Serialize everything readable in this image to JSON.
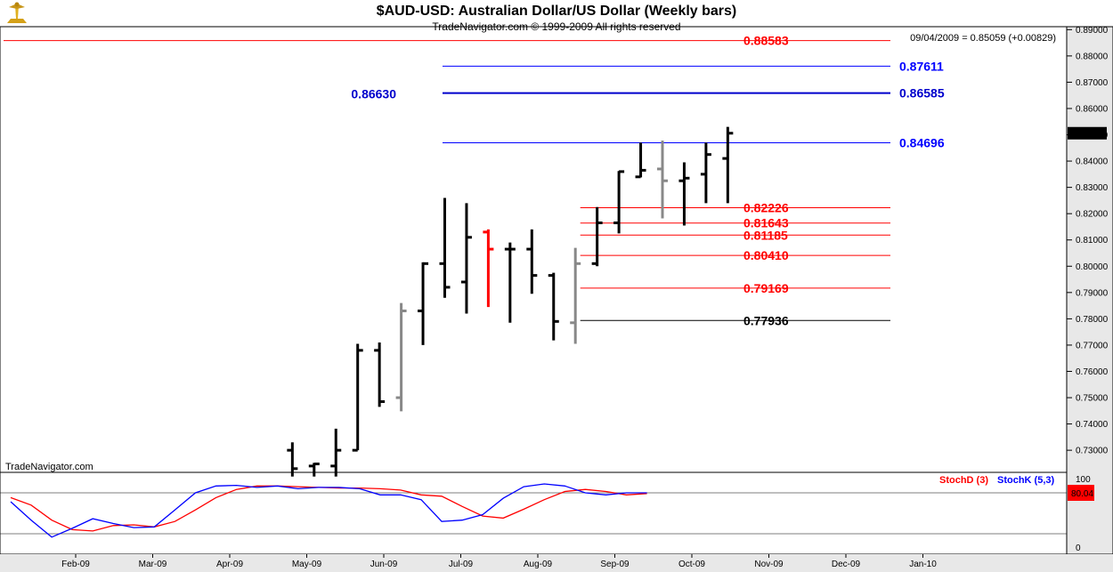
{
  "header": {
    "title": "$AUD-USD:  Australian Dollar/US Dollar  (Weekly bars)",
    "subtitle": "TradeNavigator.com © 1999-2009 All rights reserved",
    "quote": "09/04/2009 = 0.85059 (+0.00829)",
    "watermark": "TradeNavigator.com",
    "logo_icon": "trade-navigator-logo-icon"
  },
  "colors": {
    "red": "#ff0000",
    "blue": "#0000ff",
    "navy": "#0000cc",
    "black": "#000000",
    "gray": "#888888",
    "grid": "#c0c0c0",
    "axis_bg": "#e8e8e8"
  },
  "chart_data": [
    {
      "type": "ohlc",
      "title": "$AUD-USD:  Australian Dollar/US Dollar  (Weekly bars)",
      "ylim": [
        0.7226,
        0.8918
      ],
      "y_ticks": [
        0.73,
        0.74,
        0.75,
        0.76,
        0.77,
        0.78,
        0.79,
        0.8,
        0.81,
        0.82,
        0.83,
        0.84,
        0.85,
        0.86,
        0.87,
        0.88,
        0.89
      ],
      "y_tick_labels": [
        "0.73000",
        "0.74000",
        "0.75000",
        "0.76000",
        "0.77000",
        "0.78000",
        "0.79000",
        "0.80000",
        "0.81000",
        "0.82000",
        "0.83000",
        "0.84000",
        "0.85000",
        "0.86000",
        "0.87000",
        "0.88000",
        "0.89000"
      ],
      "last_price_label": "0.85059",
      "x_labels": [
        "Feb-09",
        "Mar-09",
        "Apr-09",
        "May-09",
        "Jun-09",
        "Jul-09",
        "Aug-09",
        "Sep-09",
        "Oct-09",
        "Nov-09",
        "Dec-09",
        "Jan-10"
      ],
      "bars": [
        {
          "week": 13,
          "open": 0.73,
          "high": 0.733,
          "low": 0.72,
          "close": 0.723,
          "color": "black"
        },
        {
          "week": 14,
          "open": 0.724,
          "high": 0.7252,
          "low": 0.72,
          "close": 0.7248,
          "color": "black"
        },
        {
          "week": 15,
          "open": 0.724,
          "high": 0.7382,
          "low": 0.72,
          "close": 0.73,
          "color": "black"
        },
        {
          "week": 16,
          "open": 0.73,
          "high": 0.7705,
          "low": 0.73,
          "close": 0.768,
          "color": "black"
        },
        {
          "week": 17,
          "open": 0.768,
          "high": 0.771,
          "low": 0.7465,
          "close": 0.7485,
          "color": "black"
        },
        {
          "week": 18,
          "open": 0.75,
          "high": 0.786,
          "low": 0.7448,
          "close": 0.783,
          "color": "gray"
        },
        {
          "week": 19,
          "open": 0.783,
          "high": 0.8015,
          "low": 0.77,
          "close": 0.801,
          "color": "black"
        },
        {
          "week": 20,
          "open": 0.801,
          "high": 0.826,
          "low": 0.788,
          "close": 0.792,
          "color": "black"
        },
        {
          "week": 21,
          "open": 0.794,
          "high": 0.824,
          "low": 0.782,
          "close": 0.811,
          "color": "black"
        },
        {
          "week": 22,
          "open": 0.813,
          "high": 0.814,
          "low": 0.7845,
          "close": 0.8065,
          "color": "red"
        },
        {
          "week": 23,
          "open": 0.8065,
          "high": 0.809,
          "low": 0.7785,
          "close": 0.8065,
          "color": "black"
        },
        {
          "week": 24,
          "open": 0.8065,
          "high": 0.814,
          "low": 0.7895,
          "close": 0.7965,
          "color": "black"
        },
        {
          "week": 25,
          "open": 0.7965,
          "high": 0.7975,
          "low": 0.7718,
          "close": 0.779,
          "color": "black"
        },
        {
          "week": 26,
          "open": 0.7785,
          "high": 0.807,
          "low": 0.7705,
          "close": 0.801,
          "color": "gray"
        },
        {
          "week": 27,
          "open": 0.801,
          "high": 0.8225,
          "low": 0.8,
          "close": 0.8165,
          "color": "black"
        },
        {
          "week": 28,
          "open": 0.8165,
          "high": 0.8362,
          "low": 0.8125,
          "close": 0.836,
          "color": "black"
        },
        {
          "week": 29,
          "open": 0.834,
          "high": 0.847,
          "low": 0.8338,
          "close": 0.8365,
          "color": "black"
        },
        {
          "week": 30,
          "open": 0.837,
          "high": 0.8478,
          "low": 0.8182,
          "close": 0.8325,
          "color": "gray"
        },
        {
          "week": 31,
          "open": 0.8325,
          "high": 0.8395,
          "low": 0.8155,
          "close": 0.8335,
          "color": "black"
        },
        {
          "week": 32,
          "open": 0.835,
          "high": 0.847,
          "low": 0.824,
          "close": 0.8425,
          "color": "black"
        },
        {
          "week": 33,
          "open": 0.841,
          "high": 0.853,
          "low": 0.824,
          "close": 0.8506,
          "color": "black"
        }
      ],
      "levels": [
        {
          "value": 0.88583,
          "label": "0.88583",
          "color": "red",
          "side": "right",
          "from_week": 0,
          "thick": false
        },
        {
          "value": 0.87611,
          "label": "0.87611",
          "color": "blue",
          "side": "right",
          "from_week": 20,
          "thick": false
        },
        {
          "value": 0.86585,
          "label": "0.86585",
          "color": "navy",
          "side": "right",
          "from_week": 20,
          "thick": true
        },
        {
          "value": 0.8663,
          "label": "0.86630",
          "color": "navy",
          "side": "left",
          "from_week": 20,
          "thick": false,
          "label_only": true
        },
        {
          "value": 0.84696,
          "label": "0.84696",
          "color": "blue",
          "side": "right",
          "from_week": 20,
          "thick": false
        },
        {
          "value": 0.82226,
          "label": "0.82226",
          "color": "red",
          "side": "right",
          "from_week": 26,
          "thick": false
        },
        {
          "value": 0.81643,
          "label": "0.81643",
          "color": "red",
          "side": "right",
          "from_week": 26,
          "thick": false
        },
        {
          "value": 0.81185,
          "label": "0.81185",
          "color": "red",
          "side": "right",
          "from_week": 26,
          "thick": false
        },
        {
          "value": 0.8041,
          "label": "0.80410",
          "color": "red",
          "side": "right",
          "from_week": 26,
          "thick": false
        },
        {
          "value": 0.79169,
          "label": "0.79169",
          "color": "red",
          "side": "right",
          "from_week": 26,
          "thick": false
        },
        {
          "value": 0.77936,
          "label": "0.77936",
          "color": "black",
          "side": "right",
          "from_week": 26,
          "thick": false
        }
      ]
    },
    {
      "type": "line",
      "ylim": [
        -10,
        110
      ],
      "y_tick_labels": [
        "100",
        "80.04",
        "0"
      ],
      "y_ticks": [
        100,
        80,
        0
      ],
      "ref_lines": [
        80,
        20
      ],
      "last_value_label": "80.04",
      "series": [
        {
          "name": "StochD (3)",
          "color": "red",
          "points": [
            [
              0,
              73
            ],
            [
              1,
              62
            ],
            [
              2,
              40
            ],
            [
              3,
              26
            ],
            [
              4,
              24
            ],
            [
              5,
              32
            ],
            [
              6,
              33
            ],
            [
              7,
              30
            ],
            [
              8,
              38
            ],
            [
              9,
              55
            ],
            [
              10,
              73
            ],
            [
              11,
              85
            ],
            [
              12,
              90
            ],
            [
              13,
              90
            ],
            [
              14,
              89
            ],
            [
              15,
              88
            ],
            [
              16,
              87
            ],
            [
              17,
              87
            ],
            [
              18,
              86
            ],
            [
              19,
              84
            ],
            [
              20,
              77
            ],
            [
              21,
              75
            ],
            [
              22,
              60
            ],
            [
              23,
              46
            ],
            [
              24,
              43
            ],
            [
              25,
              56
            ],
            [
              26,
              70
            ],
            [
              27,
              82
            ],
            [
              28,
              85
            ],
            [
              29,
              82
            ],
            [
              30,
              77
            ],
            [
              31,
              79
            ]
          ]
        },
        {
          "name": "StochK (5,3)",
          "color": "blue",
          "points": [
            [
              0,
              67
            ],
            [
              1,
              40
            ],
            [
              2,
              15
            ],
            [
              3,
              28
            ],
            [
              4,
              42
            ],
            [
              5,
              35
            ],
            [
              6,
              29
            ],
            [
              7,
              30
            ],
            [
              8,
              55
            ],
            [
              9,
              80
            ],
            [
              10,
              90
            ],
            [
              11,
              91
            ],
            [
              12,
              88
            ],
            [
              13,
              90
            ],
            [
              14,
              86
            ],
            [
              15,
              88
            ],
            [
              16,
              88
            ],
            [
              17,
              86
            ],
            [
              18,
              77
            ],
            [
              19,
              77
            ],
            [
              20,
              70
            ],
            [
              21,
              38
            ],
            [
              22,
              40
            ],
            [
              23,
              48
            ],
            [
              24,
              72
            ],
            [
              25,
              89
            ],
            [
              26,
              93
            ],
            [
              27,
              90
            ],
            [
              28,
              80
            ],
            [
              29,
              77
            ],
            [
              30,
              80
            ],
            [
              31,
              80
            ]
          ]
        }
      ]
    }
  ]
}
